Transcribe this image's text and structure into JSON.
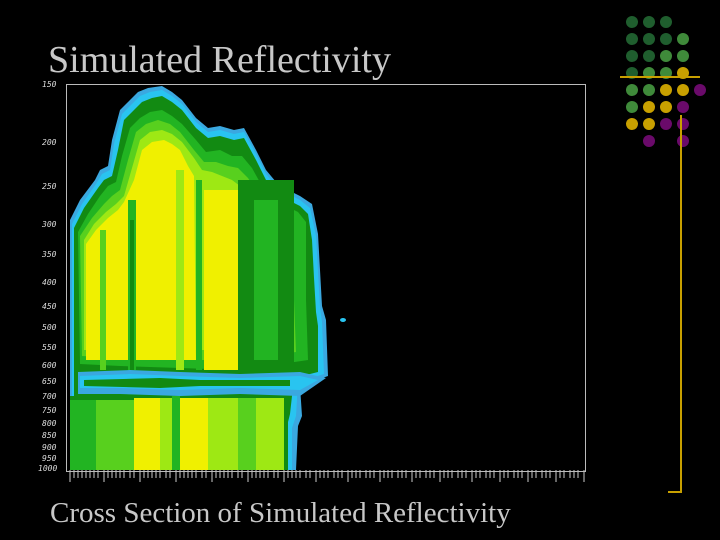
{
  "slide": {
    "title": "Simulated Reflectivity",
    "caption": "Cross Section of Simulated Reflectivity"
  },
  "axis": {
    "y_ticks": [
      "150",
      "200",
      "250",
      "300",
      "350",
      "400",
      "450",
      "500",
      "550",
      "600",
      "650",
      "700",
      "750",
      "800",
      "850",
      "900",
      "950",
      "1000"
    ]
  },
  "palette": {
    "blue": "#3aa8e0",
    "cyan": "#29c4f0",
    "dark_green": "#128a12",
    "green": "#22b422",
    "light_green": "#58d01e",
    "yellow_green": "#9ee814",
    "yellow": "#f0f000",
    "accent_dark": "#1f5e2e",
    "accent_mid": "#3f8a3a",
    "accent_gold": "#c8a000",
    "accent_purple": "#6a0a6a"
  }
}
